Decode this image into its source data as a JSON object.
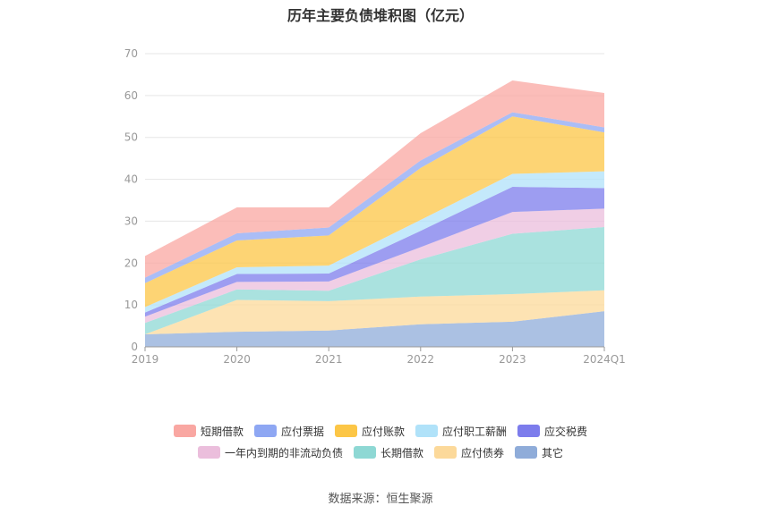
{
  "chart_data": {
    "type": "area",
    "stacked": true,
    "title": "历年主要负债堆积图（亿元）",
    "categories": [
      "2019",
      "2020",
      "2021",
      "2022",
      "2023",
      "2024Q1"
    ],
    "ylim": [
      0,
      70
    ],
    "yticks": [
      0,
      10,
      20,
      30,
      40,
      50,
      60,
      70
    ],
    "grid": true,
    "legend_position": "bottom",
    "series": [
      {
        "name": "其它",
        "color": "#8facd9",
        "values": [
          3.0,
          3.6,
          3.9,
          5.4,
          6.0,
          8.5
        ]
      },
      {
        "name": "应付债券",
        "color": "#fcd99a",
        "values": [
          0.0,
          7.6,
          7.0,
          6.6,
          6.6,
          5.0
        ]
      },
      {
        "name": "长期借款",
        "color": "#8ed8d4",
        "values": [
          2.7,
          2.5,
          2.5,
          8.9,
          14.4,
          15.1
        ]
      },
      {
        "name": "一年内到期的非流动负债",
        "color": "#ebbedc",
        "values": [
          1.5,
          1.8,
          2.2,
          2.9,
          5.2,
          4.4
        ]
      },
      {
        "name": "应交税费",
        "color": "#7c7cec",
        "values": [
          1.0,
          1.9,
          1.9,
          3.9,
          6.0,
          4.9
        ]
      },
      {
        "name": "应付职工薪酬",
        "color": "#b0e2f9",
        "values": [
          1.3,
          1.6,
          1.9,
          2.6,
          3.1,
          4.0
        ]
      },
      {
        "name": "应付账款",
        "color": "#fcc646",
        "values": [
          5.7,
          6.4,
          7.2,
          12.4,
          13.7,
          9.3
        ]
      },
      {
        "name": "应付票据",
        "color": "#8ea7f3",
        "values": [
          1.3,
          1.7,
          1.9,
          1.8,
          1.0,
          1.2
        ]
      },
      {
        "name": "短期借款",
        "color": "#f9a7a2",
        "values": [
          5.2,
          6.2,
          4.8,
          6.5,
          7.6,
          8.2
        ]
      }
    ]
  },
  "source_text": "数据来源：恒生聚源"
}
